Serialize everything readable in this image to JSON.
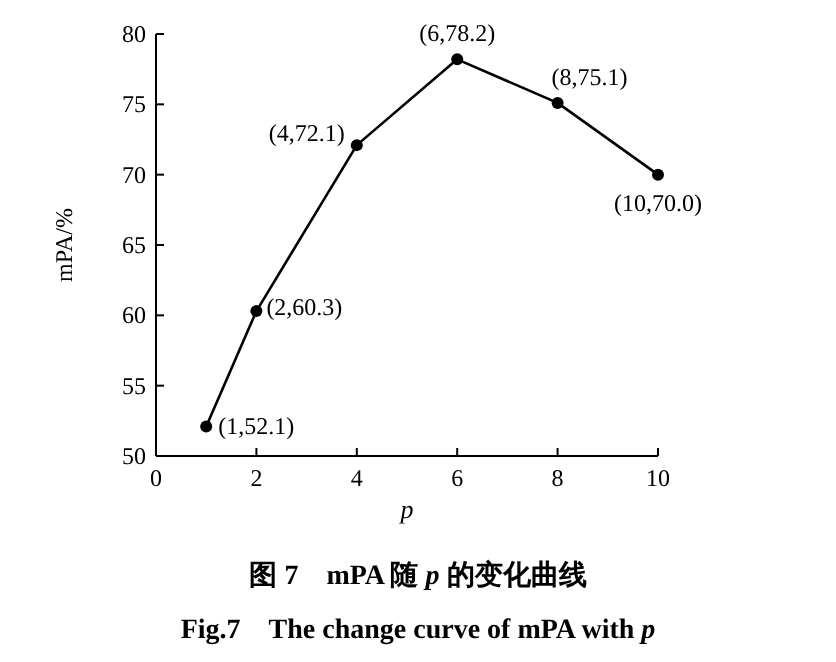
{
  "chart_data": {
    "type": "line",
    "title": "图 7　mPA 随 *p* 的变化曲线",
    "subtitle": "Fig.7　The change curve of mPA with *p*",
    "xlabel": "p",
    "ylabel": "mPA/%",
    "x": [
      1,
      2,
      4,
      6,
      8,
      10
    ],
    "values": [
      52.1,
      60.3,
      72.1,
      78.2,
      75.1,
      70.0
    ],
    "value_labels": [
      "(1,52.1)",
      "(2,60.3)",
      "(4,72.1)",
      "(6,78.2)",
      "(8,75.1)",
      "(10,70.0)"
    ],
    "color": "#000000",
    "marker": "circle",
    "line_style": "solid",
    "grid": false,
    "xlim": [
      0,
      10
    ],
    "ylim": [
      50,
      80
    ],
    "xticks": [
      0,
      2,
      4,
      6,
      8,
      10
    ],
    "yticks": [
      50,
      55,
      60,
      65,
      70,
      75,
      80
    ]
  }
}
